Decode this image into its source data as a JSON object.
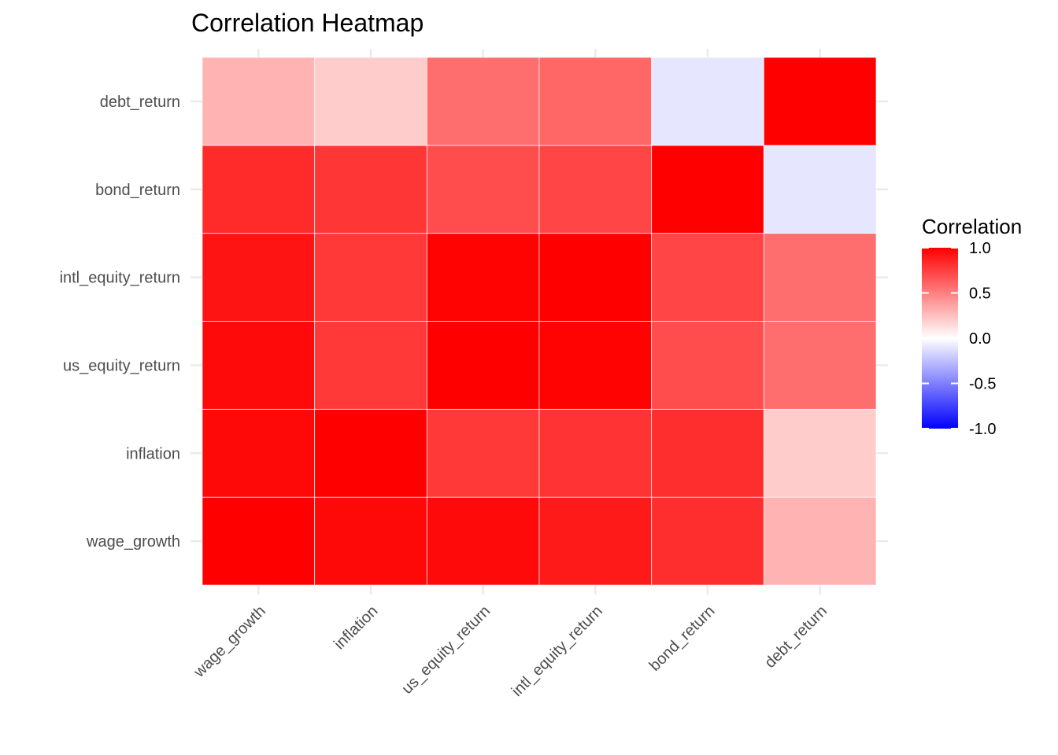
{
  "chart_data": {
    "type": "heatmap",
    "title": "Correlation Heatmap",
    "xlabel": "",
    "ylabel": "",
    "x_categories": [
      "wage_growth",
      "inflation",
      "us_equity_return",
      "intl_equity_return",
      "bond_return",
      "debt_return"
    ],
    "y_categories": [
      "wage_growth",
      "inflation",
      "us_equity_return",
      "intl_equity_return",
      "bond_return",
      "debt_return"
    ],
    "values": [
      [
        1.0,
        0.97,
        0.96,
        0.9,
        0.82,
        0.3
      ],
      [
        0.97,
        1.0,
        0.78,
        0.8,
        0.82,
        0.2
      ],
      [
        0.96,
        0.78,
        1.0,
        0.99,
        0.7,
        0.57
      ],
      [
        0.92,
        0.78,
        0.99,
        1.0,
        0.73,
        0.57
      ],
      [
        0.83,
        0.79,
        0.7,
        0.73,
        1.0,
        -0.1
      ],
      [
        0.3,
        0.2,
        0.57,
        0.6,
        -0.1,
        1.0
      ]
    ],
    "color_scale": {
      "low": "#0000ff",
      "mid": "#ffffff",
      "high": "#ff0000",
      "limits": [
        -1,
        1
      ]
    },
    "legend": {
      "title": "Correlation",
      "position": "right",
      "breaks": [
        1.0,
        0.5,
        0.0,
        -0.5,
        -1.0
      ],
      "labels": [
        "1.0",
        "0.5",
        "0.0",
        "-0.5",
        "-1.0"
      ]
    },
    "grid": true
  }
}
